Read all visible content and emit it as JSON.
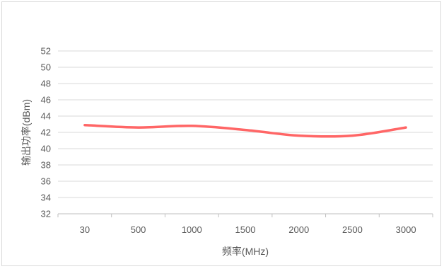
{
  "chart_data": {
    "type": "line",
    "title": "",
    "xlabel": "频率(MHz)",
    "ylabel": "输出功率(dBm)",
    "categories": [
      "30",
      "500",
      "1000",
      "1500",
      "2000",
      "2500",
      "3000"
    ],
    "ylim": [
      32,
      52
    ],
    "yticks": [
      "32",
      "34",
      "36",
      "38",
      "40",
      "42",
      "44",
      "46",
      "48",
      "50",
      "52"
    ],
    "grid": true,
    "smooth": true,
    "series": [
      {
        "values": [
          42.9,
          42.6,
          42.8,
          42.3,
          41.6,
          41.6,
          42.6
        ],
        "color": "#ff6666"
      }
    ]
  }
}
